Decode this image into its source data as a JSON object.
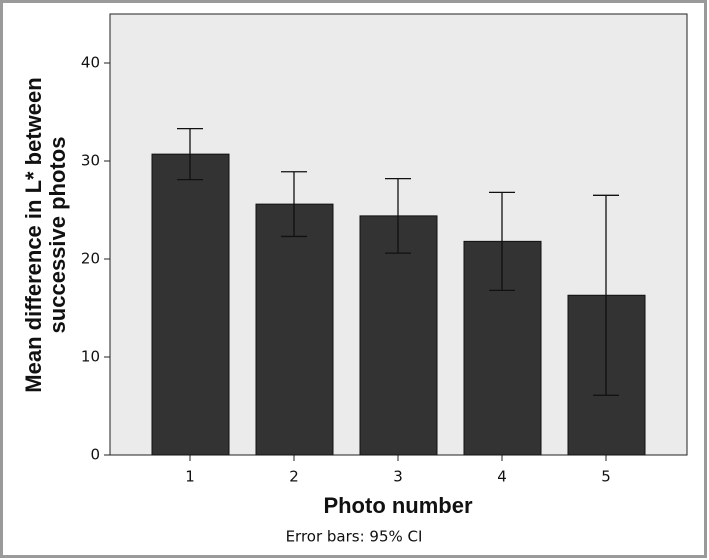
{
  "chart_data": {
    "type": "bar",
    "categories": [
      "1",
      "2",
      "3",
      "4",
      "5"
    ],
    "values": [
      30.7,
      25.6,
      24.4,
      21.8,
      16.3
    ],
    "errors": [
      2.6,
      3.3,
      3.8,
      5.0,
      10.2
    ],
    "color": "#333333",
    "plot_background": "#ebebeb",
    "ylim": [
      0,
      45
    ],
    "yticks": [
      0,
      10,
      20,
      30,
      40
    ],
    "xlabel": "Photo number",
    "ylabel": [
      "Mean difference in L* between",
      "successive photos"
    ],
    "footnote": "Error bars: 95% CI"
  }
}
